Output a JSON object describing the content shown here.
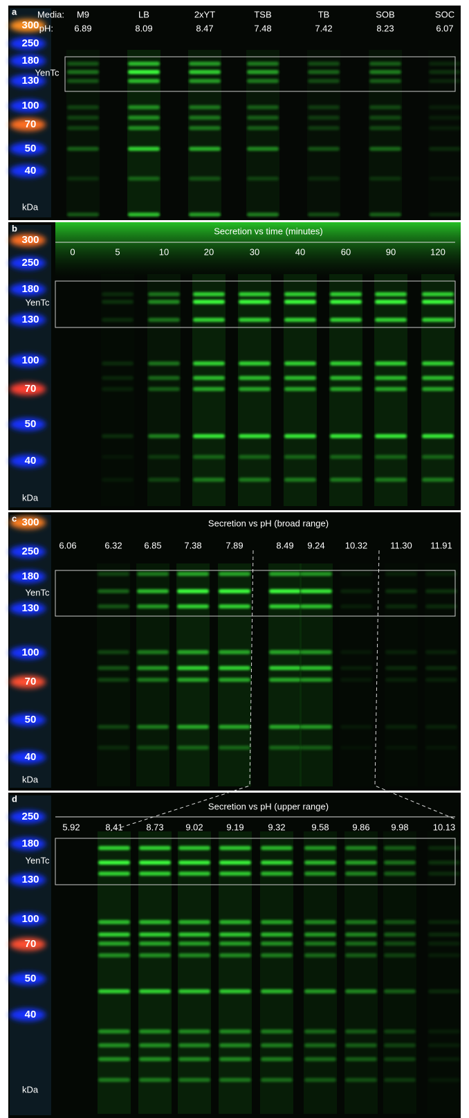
{
  "panels": [
    {
      "letter": "a",
      "row_labels": [
        "Media:",
        "pH:"
      ],
      "lanes": [
        {
          "label": "M9",
          "ph": "6.89"
        },
        {
          "label": "LB",
          "ph": "8.09"
        },
        {
          "label": "2xYT",
          "ph": "8.47"
        },
        {
          "label": "TSB",
          "ph": "7.48"
        },
        {
          "label": "TB",
          "ph": "7.42"
        },
        {
          "label": "SOB",
          "ph": "8.23"
        },
        {
          "label": "SOC",
          "ph": "6.07"
        }
      ],
      "markers": [
        "300",
        "250",
        "180",
        "130",
        "100",
        "70",
        "50",
        "40"
      ],
      "unit": "kDa",
      "box_label": "YenTc"
    },
    {
      "letter": "b",
      "title": "Secretion vs time (minutes)",
      "lanes": [
        {
          "label": "0"
        },
        {
          "label": "5"
        },
        {
          "label": "10"
        },
        {
          "label": "20"
        },
        {
          "label": "30"
        },
        {
          "label": "40"
        },
        {
          "label": "60"
        },
        {
          "label": "90"
        },
        {
          "label": "120"
        }
      ],
      "markers": [
        "300",
        "250",
        "180",
        "130",
        "100",
        "70",
        "50",
        "40"
      ],
      "unit": "kDa",
      "box_label": "YenTc"
    },
    {
      "letter": "c",
      "title": "Secretion vs pH (broad range)",
      "lanes": [
        {
          "label": "6.06"
        },
        {
          "label": "6.32"
        },
        {
          "label": "6.85"
        },
        {
          "label": "7.38"
        },
        {
          "label": "7.89"
        },
        {
          "label": "8.49"
        },
        {
          "label": "9.24"
        },
        {
          "label": "10.32"
        },
        {
          "label": "11.30"
        },
        {
          "label": "11.91"
        }
      ],
      "markers": [
        "300",
        "250",
        "180",
        "130",
        "100",
        "70",
        "50",
        "40"
      ],
      "unit": "kDa",
      "box_label": "YenTc"
    },
    {
      "letter": "d",
      "title": "Secretion vs pH (upper range)",
      "lanes": [
        {
          "label": "5.92"
        },
        {
          "label": "8.41"
        },
        {
          "label": "8.73"
        },
        {
          "label": "9.02"
        },
        {
          "label": "9.19"
        },
        {
          "label": "9.32"
        },
        {
          "label": "9.58"
        },
        {
          "label": "9.86"
        },
        {
          "label": "9.98"
        },
        {
          "label": "10.13"
        }
      ],
      "markers": [
        "250",
        "180",
        "130",
        "100",
        "70",
        "50",
        "40"
      ],
      "unit": "kDa",
      "box_label": "YenTc"
    }
  ]
}
